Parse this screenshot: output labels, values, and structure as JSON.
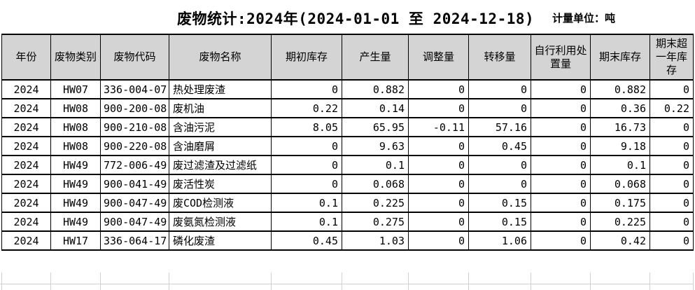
{
  "header": {
    "title": "废物统计:2024年(2024-01-01 至 2024-12-18)",
    "unit_label": "计量单位：吨"
  },
  "table": {
    "columns": [
      "年份",
      "废物类别",
      "废物代码",
      "废物名称",
      "期初库存",
      "产生量",
      "调整量",
      "转移量",
      "自行利用处置量",
      "期末库存",
      "期末超一年库存"
    ],
    "rows": [
      [
        "2024",
        "HW07",
        "336-004-07",
        "热处理废渣",
        "0",
        "0.882",
        "0",
        "0",
        "0",
        "0.882",
        "0"
      ],
      [
        "2024",
        "HW08",
        "900-200-08",
        "废机油",
        "0.22",
        "0.14",
        "0",
        "0",
        "0",
        "0.36",
        "0.22"
      ],
      [
        "2024",
        "HW08",
        "900-210-08",
        "含油污泥",
        "8.05",
        "65.95",
        "-0.11",
        "57.16",
        "0",
        "16.73",
        "0"
      ],
      [
        "2024",
        "HW08",
        "900-220-08",
        "含油磨屑",
        "0",
        "9.63",
        "0",
        "0.45",
        "0",
        "9.18",
        "0"
      ],
      [
        "2024",
        "HW49",
        "772-006-49",
        "废过滤渣及过滤纸",
        "0",
        "0.1",
        "0",
        "0",
        "0",
        "0.1",
        "0"
      ],
      [
        "2024",
        "HW49",
        "900-041-49",
        "废活性炭",
        "0",
        "0.068",
        "0",
        "0",
        "0",
        "0.068",
        "0"
      ],
      [
        "2024",
        "HW49",
        "900-047-49",
        "废COD检测液",
        "0.1",
        "0.225",
        "0",
        "0.15",
        "0",
        "0.175",
        "0"
      ],
      [
        "2024",
        "HW49",
        "900-047-49",
        "废氨氮检测液",
        "0.1",
        "0.275",
        "0",
        "0.15",
        "0",
        "0.225",
        "0"
      ],
      [
        "2024",
        "HW17",
        "336-064-17",
        "磷化废渣",
        "0.45",
        "1.03",
        "0",
        "1.06",
        "0",
        "0.42",
        "0"
      ]
    ]
  },
  "colors": {
    "header_bg": "#d4d4d4",
    "table_border": "#000000",
    "grid_light": "#d0d0d0",
    "background": "#ffffff"
  }
}
